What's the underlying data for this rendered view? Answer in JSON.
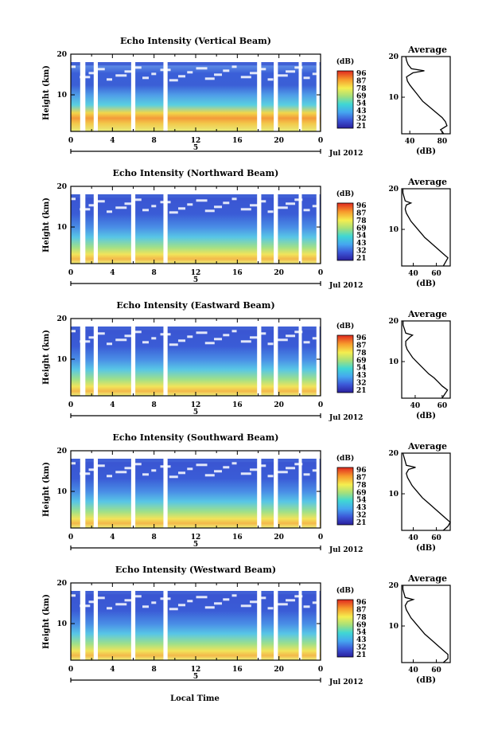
{
  "chart_data": {
    "type": "heatmap",
    "date_label": "Jul 2012",
    "day_marker": "5",
    "time_axis_label": "Local Time",
    "height_axis_label": "Height (km)",
    "colorbar_label": "(dB)",
    "colorbar_ticks": [
      "96",
      "87",
      "78",
      "69",
      "54",
      "43",
      "32",
      "21"
    ],
    "x_ticks": [
      "0",
      "4",
      "8",
      "12",
      "16",
      "20",
      "0"
    ],
    "y_ticks": [
      "20",
      "10"
    ],
    "profile_title": "Average",
    "profile_xlabel": "(dB)",
    "profile_y_ticks": [
      "20",
      "10"
    ],
    "data_gaps_hours": [
      [
        0.9,
        1.4
      ],
      [
        2.2,
        2.6
      ],
      [
        5.8,
        6.2
      ],
      [
        8.9,
        9.3
      ],
      [
        17.9,
        18.3
      ],
      [
        19.5,
        19.9
      ],
      [
        21.9,
        22.2
      ],
      [
        23.6,
        23.9
      ]
    ],
    "panels": [
      {
        "title": "Echo Intensity (Vertical Beam)",
        "profile_x_ticks": [
          "40",
          "80"
        ],
        "profile_xlim": [
          30,
          90
        ],
        "profile": [
          [
            1,
            82
          ],
          [
            2,
            78
          ],
          [
            3,
            86
          ],
          [
            4,
            84
          ],
          [
            5,
            80
          ],
          [
            6,
            74
          ],
          [
            7,
            68
          ],
          [
            8,
            62
          ],
          [
            9,
            56
          ],
          [
            10,
            52
          ],
          [
            11,
            48
          ],
          [
            12,
            44
          ],
          [
            13,
            40
          ],
          [
            14,
            37
          ],
          [
            15,
            36
          ],
          [
            16,
            44
          ],
          [
            16.5,
            58
          ],
          [
            17,
            42
          ],
          [
            18,
            38
          ],
          [
            19,
            36
          ],
          [
            20,
            35
          ]
        ]
      },
      {
        "title": "Echo Intensity (Northward Beam)",
        "profile_x_ticks": [
          "40",
          "60"
        ],
        "profile_xlim": [
          30,
          72
        ],
        "profile": [
          [
            1,
            66
          ],
          [
            2,
            68
          ],
          [
            3,
            70
          ],
          [
            4,
            66
          ],
          [
            5,
            62
          ],
          [
            6,
            58
          ],
          [
            7,
            54
          ],
          [
            8,
            50
          ],
          [
            9,
            47
          ],
          [
            10,
            44
          ],
          [
            11,
            41
          ],
          [
            12,
            38
          ],
          [
            13,
            36
          ],
          [
            14,
            34
          ],
          [
            15,
            33
          ],
          [
            16,
            34
          ],
          [
            16.5,
            38
          ],
          [
            17,
            33
          ],
          [
            18,
            32
          ],
          [
            19,
            31
          ],
          [
            20,
            31
          ]
        ]
      },
      {
        "title": "Echo Intensity (Eastward Beam)",
        "profile_x_ticks": [
          "40",
          "60"
        ],
        "profile_xlim": [
          30,
          66
        ],
        "profile": [
          [
            1,
            60
          ],
          [
            2,
            62
          ],
          [
            3,
            64
          ],
          [
            4,
            60
          ],
          [
            5,
            57
          ],
          [
            6,
            54
          ],
          [
            7,
            50
          ],
          [
            8,
            47
          ],
          [
            9,
            44
          ],
          [
            10,
            41
          ],
          [
            11,
            38
          ],
          [
            12,
            36
          ],
          [
            13,
            34
          ],
          [
            14,
            33
          ],
          [
            15,
            33
          ],
          [
            16,
            36
          ],
          [
            16.5,
            38
          ],
          [
            17,
            33
          ],
          [
            18,
            32
          ],
          [
            19,
            31
          ],
          [
            20,
            31
          ]
        ]
      },
      {
        "title": "Echo Intensity (Southward Beam)",
        "profile_x_ticks": [
          "40",
          "60"
        ],
        "profile_xlim": [
          30,
          72
        ],
        "profile": [
          [
            1,
            66
          ],
          [
            2,
            70
          ],
          [
            3,
            72
          ],
          [
            4,
            68
          ],
          [
            5,
            64
          ],
          [
            6,
            60
          ],
          [
            7,
            56
          ],
          [
            8,
            52
          ],
          [
            9,
            48
          ],
          [
            10,
            45
          ],
          [
            11,
            42
          ],
          [
            12,
            39
          ],
          [
            13,
            37
          ],
          [
            14,
            35
          ],
          [
            15,
            34
          ],
          [
            16,
            36
          ],
          [
            16.5,
            42
          ],
          [
            17,
            34
          ],
          [
            18,
            33
          ],
          [
            19,
            32
          ],
          [
            20,
            31
          ]
        ]
      },
      {
        "title": "Echo Intensity (Westward Beam)",
        "profile_x_ticks": [
          "40",
          "60"
        ],
        "profile_xlim": [
          30,
          72
        ],
        "profile": [
          [
            1,
            66
          ],
          [
            2,
            70
          ],
          [
            3,
            70
          ],
          [
            4,
            66
          ],
          [
            5,
            62
          ],
          [
            6,
            58
          ],
          [
            7,
            54
          ],
          [
            8,
            50
          ],
          [
            9,
            47
          ],
          [
            10,
            44
          ],
          [
            11,
            41
          ],
          [
            12,
            38
          ],
          [
            13,
            36
          ],
          [
            14,
            34
          ],
          [
            15,
            33
          ],
          [
            16,
            35
          ],
          [
            16.5,
            40
          ],
          [
            17,
            33
          ],
          [
            18,
            32
          ],
          [
            19,
            31
          ],
          [
            20,
            31
          ]
        ]
      }
    ]
  }
}
